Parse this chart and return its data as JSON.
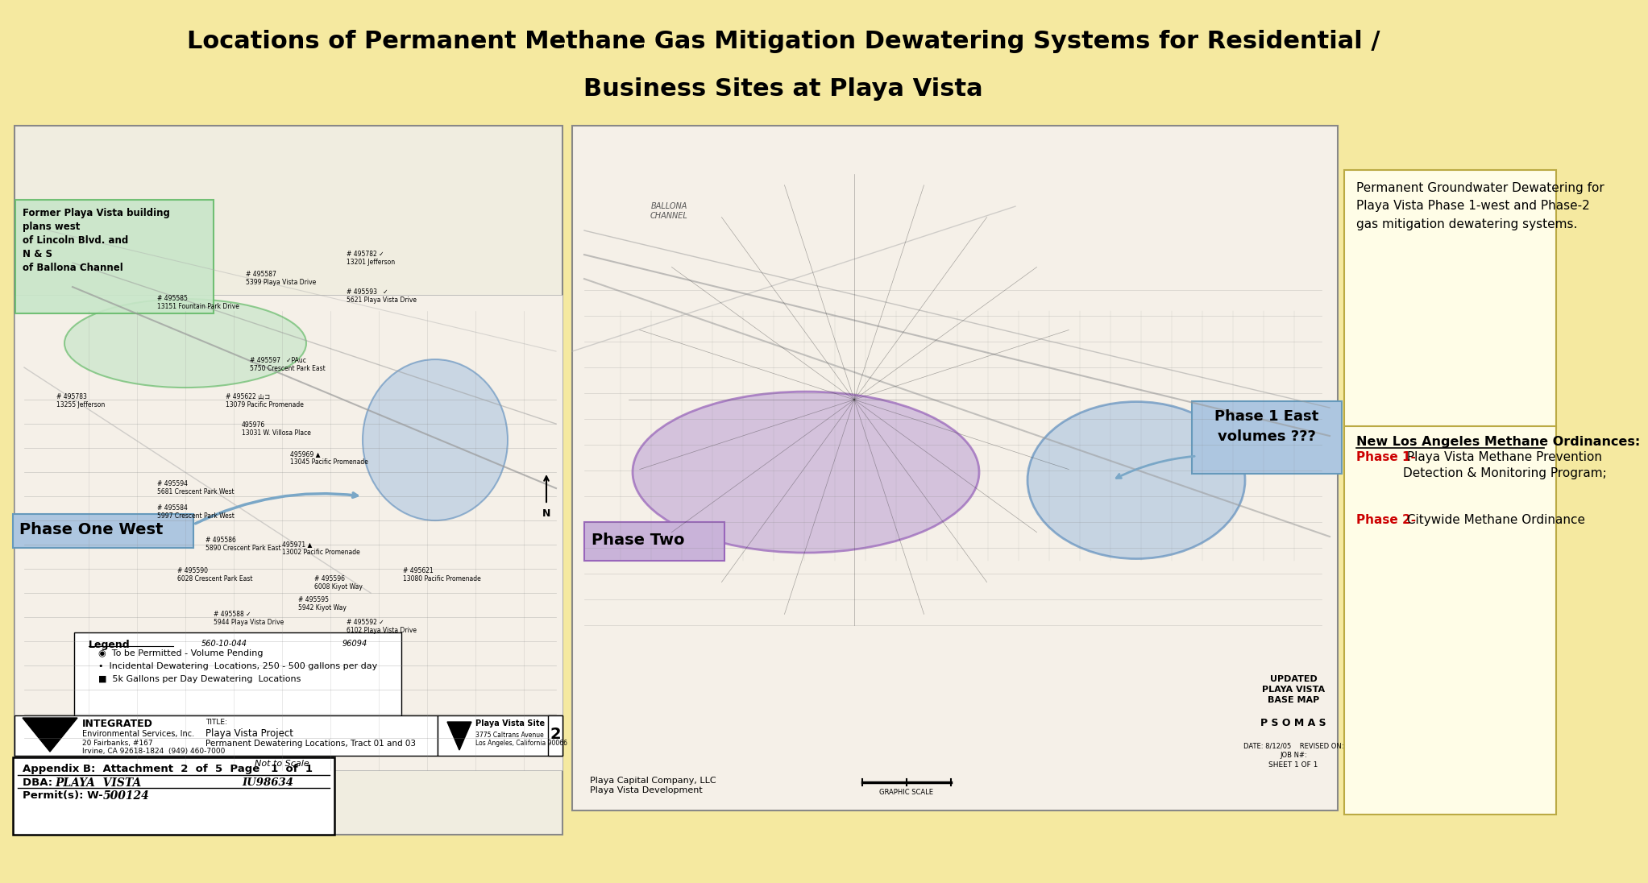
{
  "title_line1": "Locations of Permanent Methane Gas Mitigation Dewatering Systems for Residential /",
  "title_line2": "Business Sites at Playa Vista",
  "title_bg_color": "#adc6e0",
  "main_bg_color": "#f5e9a0",
  "label_former_playa": "Former Playa Vista building\nplans west\nof Lincoln Blvd. and\nN & S\nof Ballona Channel",
  "label_former_playa_bg": "#c8e6c9",
  "label_phase_one_west": "Phase One West",
  "label_phase_one_west_bg": "#adc6e0",
  "label_phase_two": "Phase Two",
  "label_phase_two_bg": "#c9b3d9",
  "label_phase1_east": "Phase 1 East\nvolumes ???",
  "label_phase1_east_bg": "#adc6e0",
  "right_text_title": "Permanent Groundwater Dewatering for\nPlaya Vista Phase 1-west and Phase-2\ngas mitigation dewatering systems.",
  "right_text_bg": "#fffde7",
  "ordinance_title": "New Los Angeles Methane Ordinances:",
  "ordinance_phase1": "Phase 1-",
  "ordinance_phase1_text": " Playa Vista Methane Prevention\nDetection & Monitoring Program;",
  "ordinance_phase2": "Phase 2-",
  "ordinance_phase2_text": " Citywide Methane Ordinance",
  "ordinance_phase1_color": "#cc0000",
  "ordinance_phase2_color": "#cc0000",
  "appendix_text": "Appendix B:  Attachment  2  of  5  Page   1  of  1",
  "dba_label": "DBA: ",
  "dba_value": "PLAYA  VISTA",
  "dba_right": "IU98634",
  "permit_label": "Permit(s): W-",
  "permit_value": "500124"
}
